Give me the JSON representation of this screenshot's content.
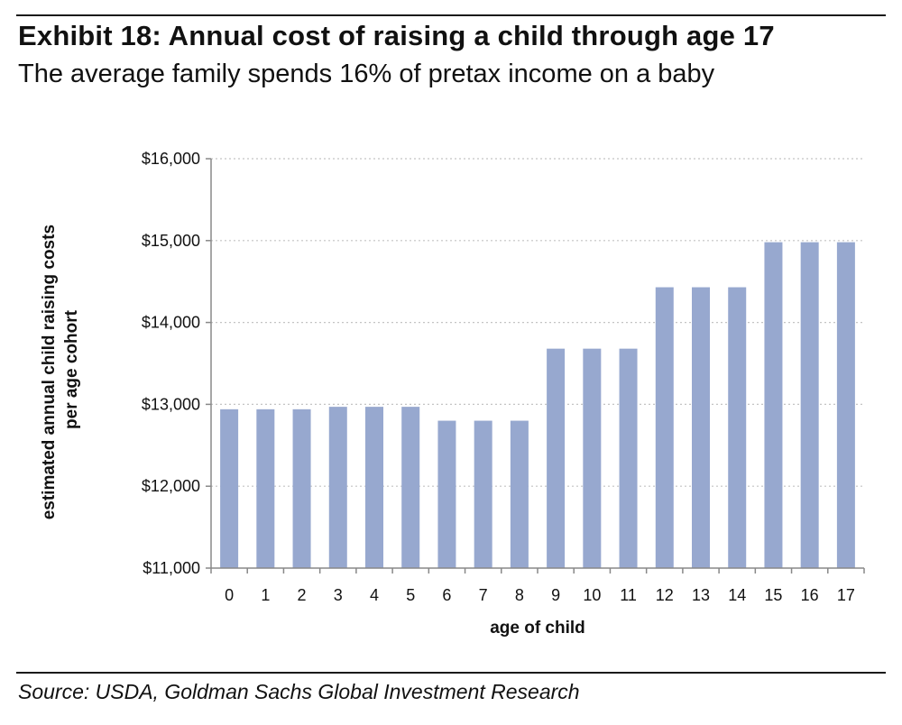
{
  "header": {
    "title": "Exhibit 18: Annual cost of raising a child through age 17",
    "subtitle": "The average family spends 16% of pretax income on a baby"
  },
  "footer": {
    "source": "Source: USDA, Goldman Sachs Global Investment Research"
  },
  "chart_data": {
    "type": "bar",
    "title": "Exhibit 18: Annual cost of raising a child through age 17",
    "subtitle": "The average family spends 16% of pretax income on a baby",
    "xlabel": "age of child",
    "ylabel_lines": [
      "estimated annual child raising costs",
      "per age cohort"
    ],
    "categories": [
      "0",
      "1",
      "2",
      "3",
      "4",
      "5",
      "6",
      "7",
      "8",
      "9",
      "10",
      "11",
      "12",
      "13",
      "14",
      "15",
      "16",
      "17"
    ],
    "values": [
      12940,
      12940,
      12940,
      12970,
      12970,
      12970,
      12800,
      12800,
      12800,
      13680,
      13680,
      13680,
      14430,
      14430,
      14430,
      14980,
      14980,
      14980
    ],
    "ylim": [
      11000,
      16000
    ],
    "yticks": [
      11000,
      12000,
      13000,
      14000,
      15000,
      16000
    ],
    "ytick_labels": [
      "$11,000",
      "$12,000",
      "$13,000",
      "$14,000",
      "$15,000",
      "$16,000"
    ],
    "grid": true,
    "bar_color": "#97a8cf",
    "grid_color": "#c4c4c4",
    "axis_color": "#888888"
  }
}
